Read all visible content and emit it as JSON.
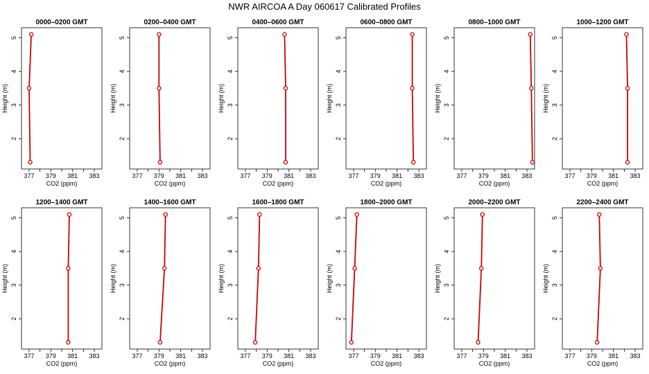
{
  "title": "NWR AIRCOA A  Day 060617  Calibrated Profiles",
  "colors": {
    "profile": "#cc0000",
    "axis": "#000000"
  },
  "chart_data": {
    "type": "line",
    "title": "NWR AIRCOA A  Day 060617  Calibrated Profiles",
    "layout": {
      "rows": 2,
      "cols": 6
    },
    "xlabel": "CO2 (ppm)",
    "ylabel": "Height (m)",
    "xlim": [
      376.3,
      383.7
    ],
    "ylim": [
      1.1,
      5.3
    ],
    "xticks": [
      377,
      379,
      381,
      383
    ],
    "yticks": [
      2,
      3,
      4,
      5
    ],
    "heights": [
      5.1,
      3.5,
      1.3
    ],
    "panels": [
      {
        "title": "0000–0200 GMT",
        "co2": [
          377.2,
          377.0,
          377.1
        ]
      },
      {
        "title": "0200–0400 GMT",
        "co2": [
          379.0,
          379.0,
          379.1
        ]
      },
      {
        "title": "0400–0600 GMT",
        "co2": [
          380.6,
          380.7,
          380.7
        ]
      },
      {
        "title": "0600–0800 GMT",
        "co2": [
          382.4,
          382.4,
          382.5
        ]
      },
      {
        "title": "0800–1000 GMT",
        "co2": [
          383.3,
          383.4,
          383.5
        ]
      },
      {
        "title": "1000–1200 GMT",
        "co2": [
          382.2,
          382.3,
          382.3
        ]
      },
      {
        "title": "1200–1400 GMT",
        "co2": [
          380.7,
          380.6,
          380.6
        ]
      },
      {
        "title": "1400–1600 GMT",
        "co2": [
          379.6,
          379.5,
          379.1
        ]
      },
      {
        "title": "1600–1800 GMT",
        "co2": [
          378.3,
          378.2,
          377.9
        ]
      },
      {
        "title": "1800–2000 GMT",
        "co2": [
          377.3,
          377.1,
          376.8
        ]
      },
      {
        "title": "2000–2200 GMT",
        "co2": [
          378.9,
          378.8,
          378.5
        ]
      },
      {
        "title": "2200–2400 GMT",
        "co2": [
          379.7,
          379.8,
          379.5
        ]
      }
    ]
  }
}
